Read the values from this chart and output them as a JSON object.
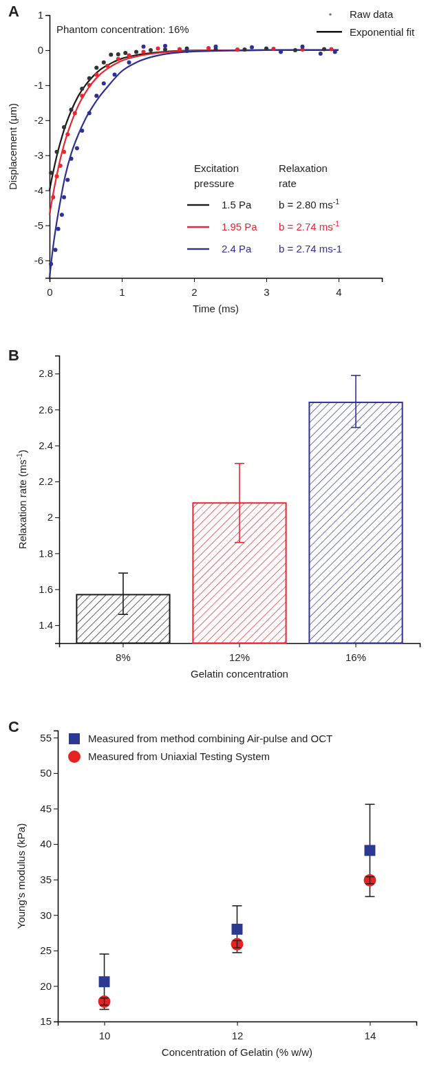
{
  "chart_data": [
    {
      "type": "line",
      "title": "A",
      "xlabel": "Time (ms)",
      "ylabel": "Displacement (µm)",
      "xlim": [
        0,
        4.6
      ],
      "xticks": [
        0,
        1,
        2,
        3,
        4
      ],
      "ylim": [
        -6.5,
        1
      ],
      "yticks": [
        -6,
        -5,
        -4,
        -3,
        -2,
        -1,
        0,
        1
      ],
      "legend": "right",
      "annotations": [
        "Phantom concentration: 16%",
        "Raw data",
        "Exponential fit",
        "Excitation pressure",
        "Relaxation rate",
        "b = 2.80 ms$^{-1}$",
        "b = 2.74 ms$^{-1}$",
        "b = 2.74 ms-1"
      ],
      "series": [
        {
          "type": "scatter",
          "marker": "circle",
          "color": "#333333",
          "x": [
            0.02,
            0.1,
            0.2,
            0.3,
            0.45,
            0.55,
            0.65,
            0.75,
            0.85,
            0.95,
            1.05,
            1.2,
            1.4,
            1.6,
            1.9,
            2.3,
            2.7,
            3.0,
            3.4,
            3.8
          ],
          "values": [
            -3.5,
            -2.9,
            -2.2,
            -1.7,
            -1.1,
            -0.8,
            -0.5,
            -0.35,
            -0.13,
            -0.12,
            -0.08,
            -0.05,
            0.0,
            0.02,
            0.05,
            0.03,
            0.02,
            0.05,
            0.0,
            0.03
          ]
        },
        {
          "type": "scatter",
          "marker": "circle",
          "color": "#e8262d",
          "x": [
            0.05,
            0.1,
            0.15,
            0.2,
            0.25,
            0.35,
            0.45,
            0.55,
            0.65,
            0.8,
            0.95,
            1.1,
            1.3,
            1.5,
            1.8,
            2.2,
            2.6,
            3.1,
            3.5,
            3.9
          ],
          "values": [
            -4.2,
            -3.6,
            -3.3,
            -2.9,
            -2.4,
            -1.8,
            -1.3,
            -1.0,
            -0.7,
            -0.45,
            -0.25,
            -0.15,
            -0.05,
            0.05,
            0.03,
            0.06,
            0.02,
            0.04,
            0.02,
            0.03
          ]
        },
        {
          "type": "scatter",
          "marker": "circle",
          "color": "#2e3192",
          "x": [
            0.02,
            0.08,
            0.12,
            0.17,
            0.2,
            0.25,
            0.3,
            0.38,
            0.45,
            0.55,
            0.65,
            0.75,
            0.9,
            1.1,
            1.3,
            1.6,
            1.9,
            2.3,
            2.8,
            3.2,
            3.5,
            3.75,
            3.95
          ],
          "values": [
            -6.1,
            -5.7,
            -5.1,
            -4.7,
            -4.2,
            -3.7,
            -3.1,
            -2.8,
            -2.3,
            -1.8,
            -1.3,
            -0.95,
            -0.7,
            -0.35,
            0.1,
            0.12,
            -0.02,
            0.1,
            0.08,
            -0.05,
            0.1,
            -0.1,
            -0.05
          ]
        },
        {
          "name": "1.5 Pa",
          "color": "#1a1a1a",
          "x": [
            0,
            0.05,
            0.1,
            0.15,
            0.2,
            0.3,
            0.4,
            0.5,
            0.6,
            0.7,
            0.8,
            1,
            1.2,
            1.5,
            2,
            3,
            4
          ],
          "values": [
            -4.0,
            -3.48,
            -3.02,
            -2.63,
            -2.28,
            -1.73,
            -1.3,
            -0.99,
            -0.75,
            -0.56,
            -0.43,
            -0.24,
            -0.14,
            -0.06,
            -0.01,
            0,
            0
          ]
        },
        {
          "name": "1.95 Pa",
          "color": "#e8262d",
          "x": [
            0,
            0.05,
            0.1,
            0.15,
            0.2,
            0.3,
            0.4,
            0.5,
            0.6,
            0.7,
            0.8,
            1,
            1.2,
            1.5,
            2,
            3,
            4
          ],
          "values": [
            -4.7,
            -4.1,
            -3.57,
            -3.1,
            -2.7,
            -2.07,
            -1.57,
            -1.2,
            -0.91,
            -0.69,
            -0.53,
            -0.3,
            -0.18,
            -0.08,
            -0.02,
            0,
            0
          ]
        },
        {
          "name": "2.4 Pa",
          "color": "#2e3192",
          "x": [
            0,
            0.05,
            0.1,
            0.15,
            0.2,
            0.3,
            0.4,
            0.5,
            0.6,
            0.7,
            0.8,
            1,
            1.2,
            1.5,
            2,
            3,
            4
          ],
          "values": [
            -6.5,
            -5.6,
            -4.9,
            -4.3,
            -3.75,
            -2.95,
            -2.4,
            -1.95,
            -1.6,
            -1.3,
            -1.05,
            -0.6,
            -0.35,
            -0.15,
            -0.04,
            0,
            0
          ]
        }
      ]
    },
    {
      "type": "bar",
      "title": "B",
      "xlabel": "Gelatin concentration",
      "ylabel": "Relaxation rate (ms$^{-1}$)",
      "categories": [
        "8%",
        "12%",
        "16%"
      ],
      "values": [
        1.57,
        2.08,
        2.64
      ],
      "colors": [
        "#1a1a1a",
        "#e8262d",
        "#2e3192"
      ],
      "errors": [
        [
          1.46,
          1.69
        ],
        [
          1.86,
          2.3
        ],
        [
          2.5,
          2.79
        ]
      ],
      "ylim": [
        1.3,
        2.9
      ],
      "yticks": [
        1.4,
        1.6,
        1.8,
        2.0,
        2.2,
        2.4,
        2.6,
        2.8
      ]
    },
    {
      "type": "scatter",
      "title": "C",
      "xlabel": "Concentration of Gelatin (% w/w)",
      "ylabel": "Young’s modulus (kPa)",
      "xlim": [
        9.3,
        14.7
      ],
      "xticks": [
        10,
        12,
        14
      ],
      "ylim": [
        15,
        56
      ],
      "yticks": [
        15,
        20,
        25,
        30,
        35,
        40,
        45,
        50,
        55
      ],
      "legend": "top left",
      "series": [
        {
          "name": "Measured from method combining Air-pulse and OCT",
          "marker": "square",
          "color": "#2b3990",
          "x": [
            10,
            12,
            14
          ],
          "values": [
            20.6,
            28.0,
            39.1
          ],
          "errors": [
            3.9,
            3.3,
            6.5
          ]
        },
        {
          "name": "Measured from Uniaxial Testing System",
          "marker": "circle",
          "color": "#e52421",
          "x": [
            10,
            12,
            14
          ],
          "values": [
            17.8,
            25.9,
            34.9
          ],
          "errors": [
            0.5,
            0.5,
            0.5
          ]
        }
      ]
    }
  ]
}
